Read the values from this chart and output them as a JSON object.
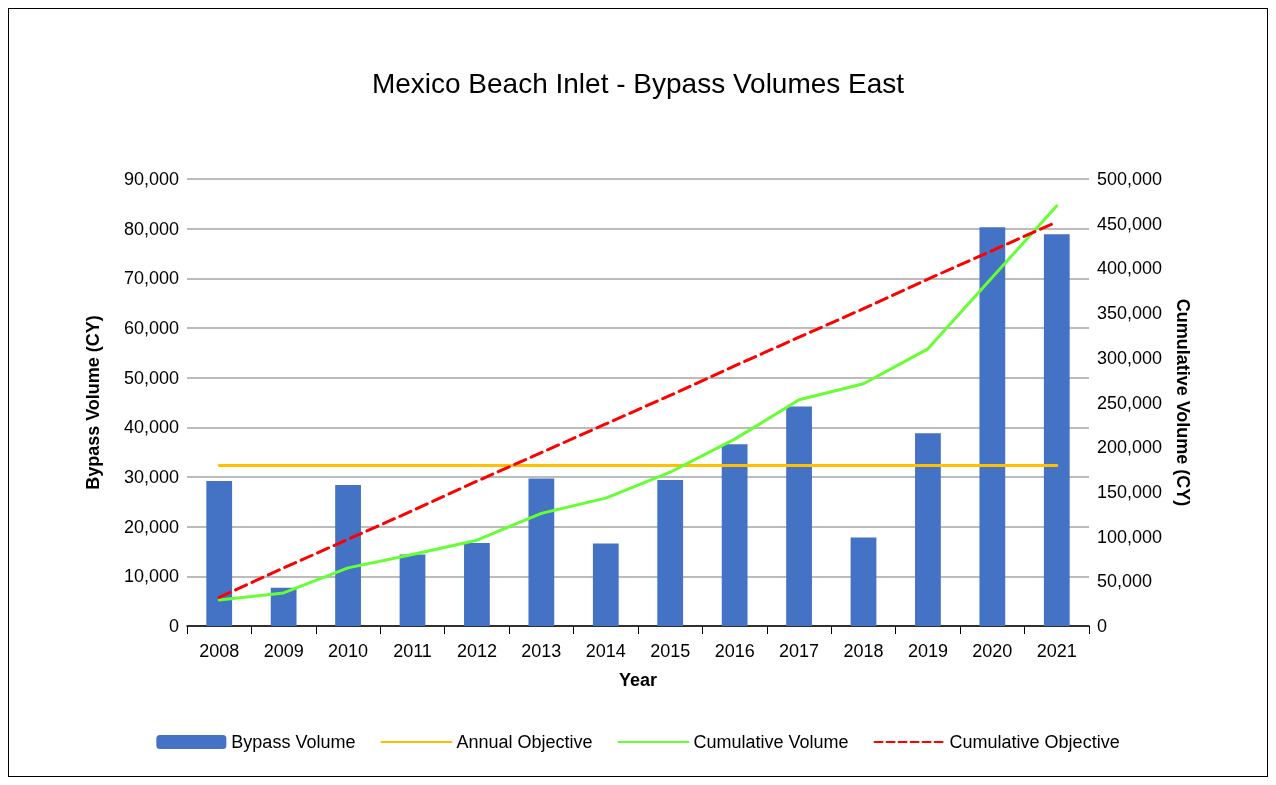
{
  "chart_data": {
    "type": "bar",
    "title": "Mexico Beach Inlet - Bypass Volumes East",
    "xlabel": "Year",
    "ylabel": "Bypass Volume (CY)",
    "y2label": "Cumulative Volume (CY)",
    "categories": [
      "2008",
      "2009",
      "2010",
      "2011",
      "2012",
      "2013",
      "2014",
      "2015",
      "2016",
      "2017",
      "2018",
      "2019",
      "2020",
      "2021"
    ],
    "series": [
      {
        "name": "Bypass Volume",
        "color": "#4472c4",
        "values": [
          29200,
          7700,
          28400,
          14400,
          16700,
          29700,
          16600,
          29400,
          36600,
          44200,
          17800,
          38800,
          80300,
          78900
        ]
      },
      {
        "name": "Annual Objective",
        "type": "line",
        "color": "#ffc000",
        "values": [
          32300,
          32300,
          32300,
          32300,
          32300,
          32300,
          32300,
          32300,
          32300,
          32300,
          32300,
          32300,
          32300,
          32300
        ]
      },
      {
        "name": "Cumulative Volume",
        "type": "line",
        "axis": "y2",
        "color": "#66ff33",
        "values": [
          29000,
          37000,
          65000,
          80000,
          96000,
          126000,
          143000,
          172000,
          209000,
          253000,
          271000,
          310000,
          390000,
          470000
        ]
      },
      {
        "name": "Cumulative Objective",
        "type": "line",
        "axis": "y2",
        "color": "#ff0000",
        "line_style": "dashed",
        "values": [
          32000,
          65000,
          97000,
          129000,
          162000,
          194000,
          226000,
          258000,
          291000,
          323000,
          355000,
          388000,
          420000,
          452000
        ]
      }
    ],
    "ylim": [
      0,
      90000
    ],
    "yticks": [
      0,
      {
        "value": 10000,
        "label": "10,000"
      },
      {
        "value": 20000,
        "label": "20,000"
      },
      {
        "value": 30000,
        "label": "30,000"
      },
      {
        "value": 40000,
        "label": "40,000"
      },
      {
        "value": 50000,
        "label": "50,000"
      },
      {
        "value": 60000,
        "label": "60,000"
      },
      {
        "value": 70000,
        "label": "70,000"
      },
      {
        "value": 80000,
        "label": "80,000"
      },
      {
        "value": 90000,
        "label": "90,000"
      }
    ],
    "y2lim": [
      0,
      500000
    ],
    "y2ticks": [
      0,
      {
        "value": 50000,
        "label": "50,000"
      },
      {
        "value": 100000,
        "label": "100,000"
      },
      {
        "value": 150000,
        "label": "150,000"
      },
      {
        "value": 200000,
        "label": "200,000"
      },
      {
        "value": 250000,
        "label": "250,000"
      },
      {
        "value": 300000,
        "label": "300,000"
      },
      {
        "value": 350000,
        "label": "350,000"
      },
      {
        "value": 400000,
        "label": "400,000"
      },
      {
        "value": 450000,
        "label": "450,000"
      },
      {
        "value": 500000,
        "label": "500,000"
      }
    ],
    "grid": "y",
    "legend": "bottom",
    "marker": "none"
  }
}
